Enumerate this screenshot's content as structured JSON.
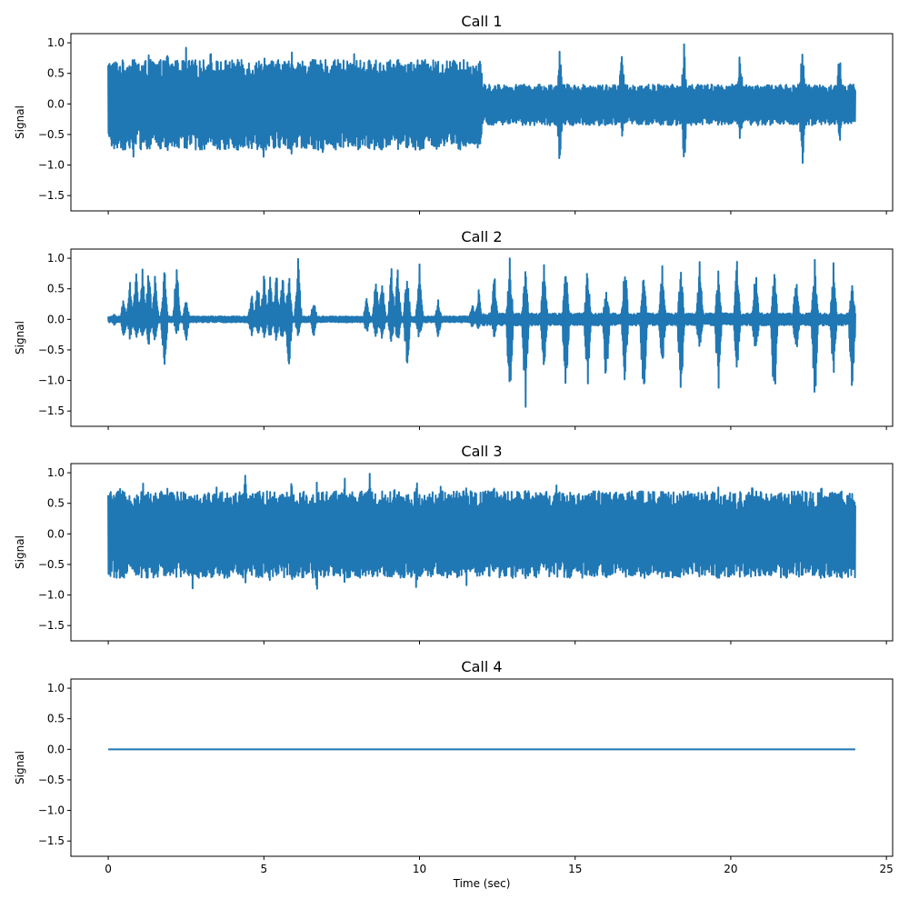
{
  "chart_data": [
    {
      "type": "line",
      "title": "Call 1",
      "ylabel": "Signal",
      "xlabel": "",
      "xlim": [
        -1.2,
        25.2
      ],
      "ylim": [
        -1.75,
        1.15
      ],
      "xticks": [
        0,
        5,
        10,
        15,
        20,
        25
      ],
      "xtick_labels": [
        "",
        "",
        "",
        "",
        "",
        ""
      ],
      "yticks": [
        1.0,
        0.5,
        0.0,
        -0.5,
        -1.0,
        -1.5
      ],
      "ytick_labels": [
        "1.0",
        "0.5",
        "0.0",
        "−0.5",
        "−1.0",
        "−1.5"
      ],
      "series": [
        {
          "color": "#1f77b4",
          "duration_sec": 24.0,
          "envelope": [
            [
              0,
              12,
              0.72,
              -0.75
            ],
            [
              12,
              24,
              0.32,
              -0.35
            ]
          ],
          "peaks": [
            [
              0.8,
              1.0,
              -0.95
            ],
            [
              1.3,
              0.95,
              -0.9
            ],
            [
              1.9,
              1.0,
              -0.95
            ],
            [
              2.5,
              0.95,
              -0.9
            ],
            [
              3.3,
              1.0,
              -0.95
            ],
            [
              4.3,
              0.95,
              -0.9
            ],
            [
              5.0,
              1.0,
              -0.95
            ],
            [
              5.9,
              0.95,
              -0.9
            ],
            [
              6.9,
              1.0,
              -0.95
            ],
            [
              7.9,
              0.95,
              -0.9
            ],
            [
              9.0,
              1.0,
              -0.95
            ],
            [
              10.3,
              1.0,
              -0.95
            ],
            [
              11.3,
              0.95,
              -0.9
            ],
            [
              14.5,
              1.0,
              -1.08
            ],
            [
              16.5,
              0.95,
              -0.65
            ],
            [
              18.5,
              1.0,
              -1.08
            ],
            [
              20.3,
              0.95,
              -0.7
            ],
            [
              22.3,
              1.0,
              -1.08
            ],
            [
              23.5,
              1.0,
              -0.65
            ]
          ]
        }
      ]
    },
    {
      "type": "line",
      "title": "Call 2",
      "ylabel": "Signal",
      "xlabel": "",
      "xlim": [
        -1.2,
        25.2
      ],
      "ylim": [
        -1.75,
        1.15
      ],
      "xticks": [
        0,
        5,
        10,
        15,
        20,
        25
      ],
      "xtick_labels": [
        "",
        "",
        "",
        "",
        "",
        ""
      ],
      "yticks": [
        1.0,
        0.5,
        0.0,
        -0.5,
        -1.0,
        -1.5
      ],
      "ytick_labels": [
        "1.0",
        "0.5",
        "0.0",
        "−0.5",
        "−1.0",
        "−1.5"
      ],
      "series": [
        {
          "color": "#1f77b4",
          "duration_sec": 24.0,
          "envelope": [
            [
              0,
              12,
              0.05,
              -0.05
            ],
            [
              12,
              24,
              0.1,
              -0.1
            ]
          ],
          "peaks": [
            [
              0.2,
              0.1,
              -0.1
            ],
            [
              0.5,
              0.4,
              -0.3
            ],
            [
              0.7,
              0.65,
              -0.35
            ],
            [
              0.9,
              0.85,
              -0.4
            ],
            [
              1.1,
              0.85,
              -0.4
            ],
            [
              1.3,
              0.85,
              -0.45
            ],
            [
              1.5,
              0.8,
              -0.45
            ],
            [
              1.8,
              0.9,
              -0.9
            ],
            [
              2.2,
              1.0,
              -0.3
            ],
            [
              2.5,
              0.35,
              -0.4
            ],
            [
              4.6,
              0.45,
              -0.3
            ],
            [
              4.8,
              0.65,
              -0.3
            ],
            [
              5.0,
              0.8,
              -0.35
            ],
            [
              5.2,
              0.85,
              -0.35
            ],
            [
              5.4,
              0.85,
              -0.4
            ],
            [
              5.6,
              0.85,
              -0.45
            ],
            [
              5.8,
              0.85,
              -0.9
            ],
            [
              6.1,
              1.0,
              -0.3
            ],
            [
              6.6,
              0.35,
              -0.3
            ],
            [
              8.3,
              0.35,
              -0.25
            ],
            [
              8.6,
              0.7,
              -0.3
            ],
            [
              8.8,
              0.85,
              -0.4
            ],
            [
              9.1,
              0.85,
              -0.45
            ],
            [
              9.3,
              0.85,
              -0.45
            ],
            [
              9.6,
              0.85,
              -0.85
            ],
            [
              10.0,
              1.0,
              -0.4
            ],
            [
              10.6,
              0.35,
              -0.3
            ],
            [
              11.7,
              0.25,
              -0.15
            ],
            [
              11.9,
              0.5,
              -0.2
            ],
            [
              12.4,
              0.8,
              -0.3
            ],
            [
              12.9,
              1.0,
              -1.45
            ],
            [
              13.4,
              0.9,
              -1.6
            ],
            [
              14.0,
              1.0,
              -1.0
            ],
            [
              14.7,
              0.95,
              -1.5
            ],
            [
              15.4,
              0.9,
              -1.2
            ],
            [
              16.0,
              0.6,
              -1.2
            ],
            [
              16.6,
              1.0,
              -1.25
            ],
            [
              17.2,
              0.95,
              -1.6
            ],
            [
              17.8,
              0.9,
              -0.9
            ],
            [
              18.4,
              0.9,
              -1.5
            ],
            [
              19.0,
              1.0,
              -0.7
            ],
            [
              19.6,
              0.85,
              -1.3
            ],
            [
              20.2,
              0.95,
              -0.9
            ],
            [
              20.8,
              0.9,
              -0.8
            ],
            [
              21.4,
              0.95,
              -1.6
            ],
            [
              22.1,
              0.75,
              -0.75
            ],
            [
              22.7,
              1.0,
              -1.5
            ],
            [
              23.3,
              0.95,
              -1.0
            ],
            [
              23.9,
              0.65,
              -1.3
            ]
          ]
        }
      ]
    },
    {
      "type": "line",
      "title": "Call 3",
      "ylabel": "Signal",
      "xlabel": "",
      "xlim": [
        -1.2,
        25.2
      ],
      "ylim": [
        -1.75,
        1.15
      ],
      "xticks": [
        0,
        5,
        10,
        15,
        20,
        25
      ],
      "xtick_labels": [
        "",
        "",
        "",
        "",
        "",
        ""
      ],
      "yticks": [
        1.0,
        0.5,
        0.0,
        -0.5,
        -1.0,
        -1.5
      ],
      "ytick_labels": [
        "1.0",
        "0.5",
        "0.0",
        "−0.5",
        "−1.0",
        "−1.5"
      ],
      "series": [
        {
          "color": "#1f77b4",
          "duration_sec": 24.0,
          "envelope": [
            [
              0,
              24,
              0.7,
              -0.72
            ]
          ],
          "peaks": [
            [
              0.4,
              0.9,
              -0.85
            ],
            [
              1.1,
              1.0,
              -0.9
            ],
            [
              1.9,
              0.95,
              -0.95
            ],
            [
              2.7,
              0.95,
              -1.0
            ],
            [
              3.5,
              0.95,
              -0.9
            ],
            [
              4.4,
              1.0,
              -0.95
            ],
            [
              5.2,
              0.95,
              -0.9
            ],
            [
              5.9,
              1.0,
              -0.95
            ],
            [
              6.7,
              1.0,
              -1.0
            ],
            [
              7.6,
              0.95,
              -0.9
            ],
            [
              8.4,
              1.0,
              -0.95
            ],
            [
              9.2,
              0.95,
              -0.9
            ],
            [
              9.9,
              1.0,
              -1.0
            ],
            [
              10.7,
              0.95,
              -0.9
            ],
            [
              11.5,
              0.9,
              -0.95
            ],
            [
              12.4,
              0.9,
              -0.85
            ],
            [
              13.4,
              0.85,
              -0.8
            ],
            [
              14.4,
              0.9,
              -0.8
            ],
            [
              15.4,
              0.85,
              -0.8
            ],
            [
              16.5,
              0.9,
              -0.8
            ],
            [
              17.6,
              0.85,
              -0.8
            ],
            [
              18.6,
              0.9,
              -0.8
            ],
            [
              19.6,
              0.85,
              -0.8
            ],
            [
              20.7,
              0.9,
              -0.8
            ],
            [
              21.8,
              0.85,
              -0.8
            ],
            [
              22.9,
              0.9,
              -0.8
            ],
            [
              23.8,
              0.85,
              -0.8
            ]
          ]
        }
      ]
    },
    {
      "type": "line",
      "title": "Call 4",
      "ylabel": "Signal",
      "xlabel": "Time (sec)",
      "xlim": [
        -1.2,
        25.2
      ],
      "ylim": [
        -1.75,
        1.15
      ],
      "xticks": [
        0,
        5,
        10,
        15,
        20,
        25
      ],
      "xtick_labels": [
        "0",
        "5",
        "10",
        "15",
        "20",
        "25"
      ],
      "yticks": [
        1.0,
        0.5,
        0.0,
        -0.5,
        -1.0,
        -1.5
      ],
      "ytick_labels": [
        "1.0",
        "0.5",
        "0.0",
        "−0.5",
        "−1.0",
        "−1.5"
      ],
      "series": [
        {
          "color": "#1f77b4",
          "duration_sec": 24.0,
          "envelope": [
            [
              0,
              24,
              0.0,
              0.0
            ]
          ],
          "peaks": []
        }
      ]
    }
  ]
}
